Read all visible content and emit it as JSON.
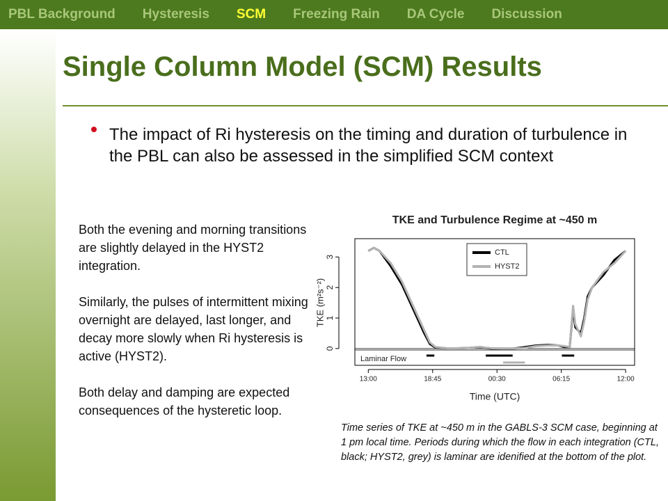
{
  "nav": {
    "items": [
      "PBL Background",
      "Hysteresis",
      "SCM",
      "Freezing Rain",
      "DA Cycle",
      "Discussion"
    ],
    "active": 2
  },
  "title": "Single Column Model (SCM) Results",
  "bullet": "The impact of Ri hysteresis on the timing and duration of turbulence in the PBL can also be assessed in the simplified SCM context",
  "paragraphs": [
    "Both the evening and morning transitions are slightly delayed in the HYST2 integration.",
    "Similarly, the pulses of intermittent mixing overnight are delayed, last longer, and decay more slowly when Ri hysteresis is active (HYST2).",
    "Both delay and damping are expected consequences of the hysteretic loop."
  ],
  "caption": "Time series of TKE at ~450 m in the GABLS-3 SCM case, beginning at 1 pm local time.  Periods during which the flow in each integration (CTL, black; HYST2, grey) is laminar are idenified at the bottom of the plot.",
  "chart": {
    "type": "line",
    "title": "TKE and Turbulence Regime at ~450 m",
    "x_label": "Time (UTC)",
    "y_label": "TKE (m²s⁻²)",
    "annotation": "Laminar Flow",
    "x": [
      0,
      0.5,
      1,
      2,
      3,
      4,
      5,
      5.5,
      6,
      7,
      8,
      9,
      10,
      10.5,
      11,
      12,
      13,
      14,
      15,
      16,
      17,
      17.5,
      18,
      18.3,
      18.5,
      19,
      19.3,
      19.6,
      20,
      21,
      22,
      23
    ],
    "series": [
      {
        "name": "CTL",
        "color": "#000000",
        "values": [
          3.2,
          3.3,
          3.2,
          2.7,
          2.1,
          1.3,
          0.5,
          0.15,
          0.03,
          0.01,
          0.01,
          0.02,
          0.05,
          0.02,
          0,
          0,
          0,
          0.05,
          0.1,
          0.12,
          0.1,
          0.05,
          0.05,
          1.3,
          0.7,
          0.5,
          1.0,
          1.7,
          2.0,
          2.4,
          2.9,
          3.2
        ],
        "laminar": [
          [
            5.2,
            5.9
          ],
          [
            10.5,
            12.9
          ],
          [
            17.3,
            18.4
          ]
        ]
      },
      {
        "name": "HYST2",
        "color": "#b3b3b3",
        "values": [
          3.2,
          3.3,
          3.2,
          2.8,
          2.2,
          1.4,
          0.6,
          0.2,
          0.05,
          0.01,
          0.01,
          0.02,
          0.05,
          0.03,
          0.01,
          0,
          0,
          0.02,
          0.08,
          0.1,
          0.1,
          0.08,
          0.05,
          1.4,
          0.8,
          0.4,
          0.9,
          1.6,
          2.0,
          2.5,
          2.8,
          3.2
        ],
        "laminar": [
          [
            12.05,
            14.0
          ]
        ]
      }
    ],
    "xlim": [
      -1.2,
      23.8
    ],
    "ylim": [
      -0.55,
      3.6
    ],
    "xticks": [
      {
        "value": 0,
        "label": "13:00"
      },
      {
        "value": 5.75,
        "label": "18:45"
      },
      {
        "value": 11.5,
        "label": "00:30"
      },
      {
        "value": 17.25,
        "label": "06:15"
      },
      {
        "value": 23,
        "label": "12:00"
      }
    ],
    "yticks": [
      0,
      1,
      2,
      3
    ],
    "legend": "top-right"
  }
}
